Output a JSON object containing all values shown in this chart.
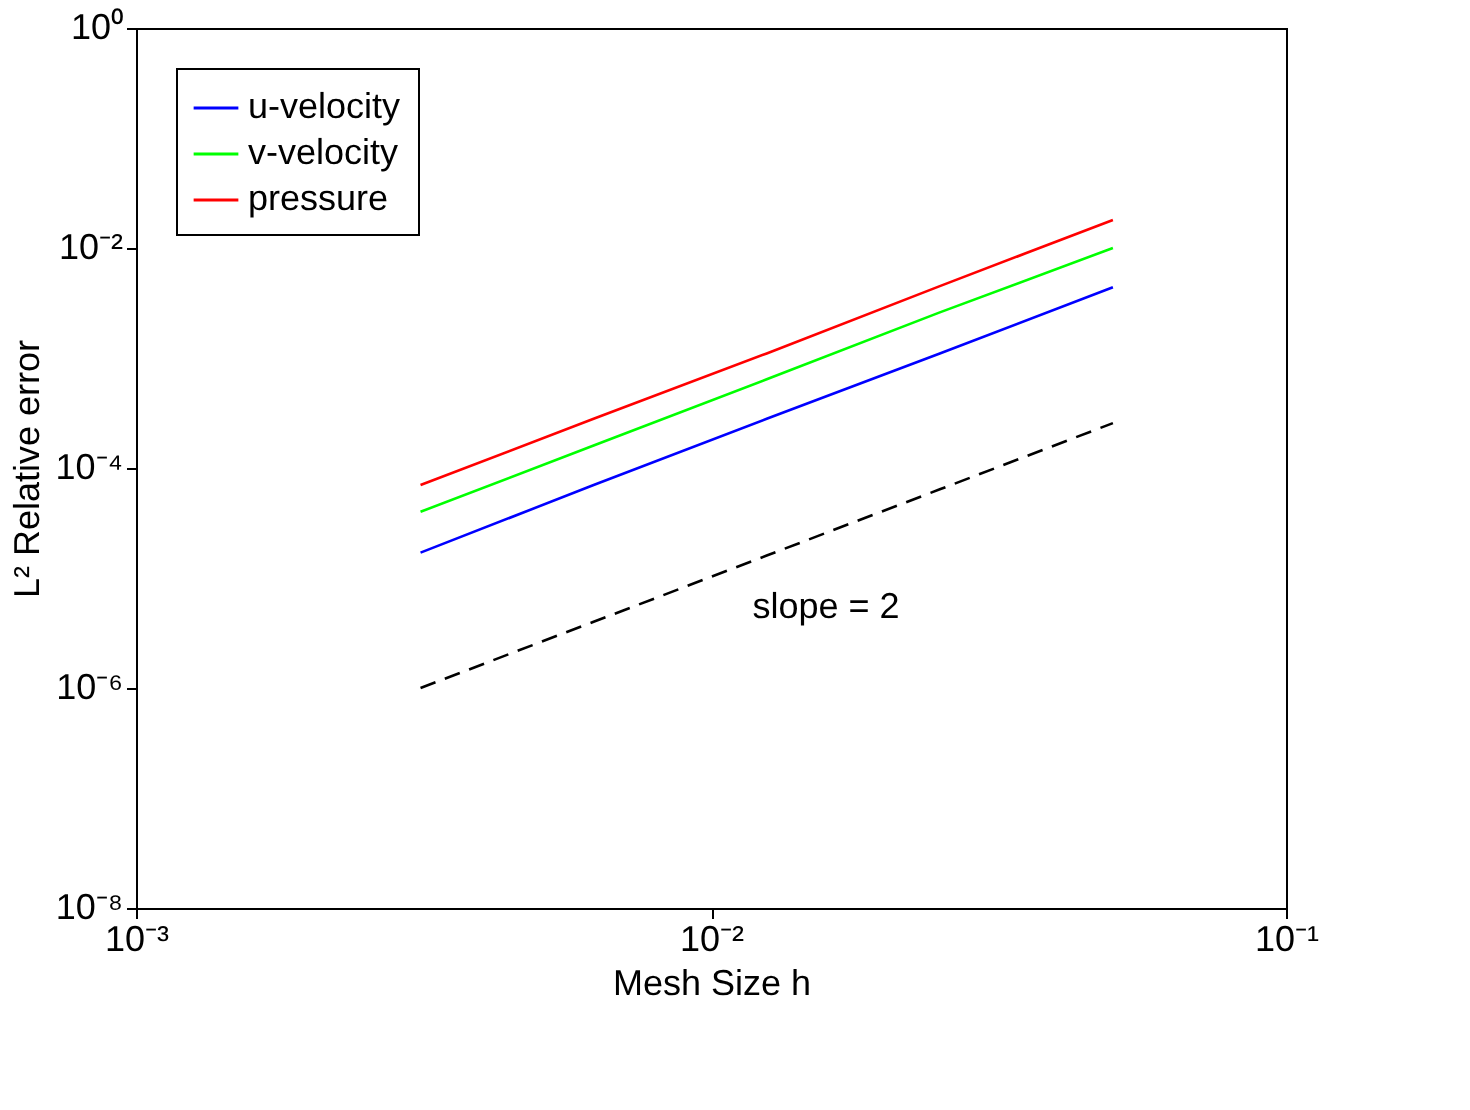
{
  "chart_data": {
    "type": "line",
    "xlabel": "Mesh Size h",
    "ylabel": "L² Relative error",
    "x": [
      0.003125,
      0.00625,
      0.0125,
      0.025,
      0.05
    ],
    "series": [
      {
        "name": "u-velocity",
        "color": "#0000ff",
        "values": [
          1.7e-05,
          7e-05,
          0.00028,
          0.0011,
          0.0044
        ]
      },
      {
        "name": "v-velocity",
        "color": "#00ff00",
        "values": [
          4e-05,
          0.00016,
          0.00064,
          0.0026,
          0.01
        ]
      },
      {
        "name": "pressure",
        "color": "#ff0000",
        "values": [
          7e-05,
          0.00028,
          0.0011,
          0.0045,
          0.018
        ]
      },
      {
        "color": "#000000",
        "line_style": "dashed",
        "values": [
          1e-06,
          4e-06,
          1.6e-05,
          6.4e-05,
          0.000256
        ]
      }
    ],
    "annotations": [
      "slope = 2"
    ],
    "log": "xy",
    "xlim": [
      0.001,
      0.1
    ],
    "ylim": [
      1e-08,
      1
    ],
    "xticks": [
      {
        "value": 0.001,
        "label": "10⁻³"
      },
      {
        "value": 0.01,
        "label": "10⁻²"
      },
      {
        "value": 0.1,
        "label": "10⁻¹"
      }
    ],
    "yticks": [
      {
        "value": 1e-08,
        "label": "10⁻⁸"
      },
      {
        "value": 1e-06,
        "label": "10⁻⁶"
      },
      {
        "value": 0.0001,
        "label": "10⁻⁴"
      },
      {
        "value": 0.01,
        "label": "10⁻²"
      },
      {
        "value": 1,
        "label": "10⁰"
      }
    ],
    "grid": false,
    "legend": "top left",
    "marker": "none",
    "line_style": "solid"
  }
}
